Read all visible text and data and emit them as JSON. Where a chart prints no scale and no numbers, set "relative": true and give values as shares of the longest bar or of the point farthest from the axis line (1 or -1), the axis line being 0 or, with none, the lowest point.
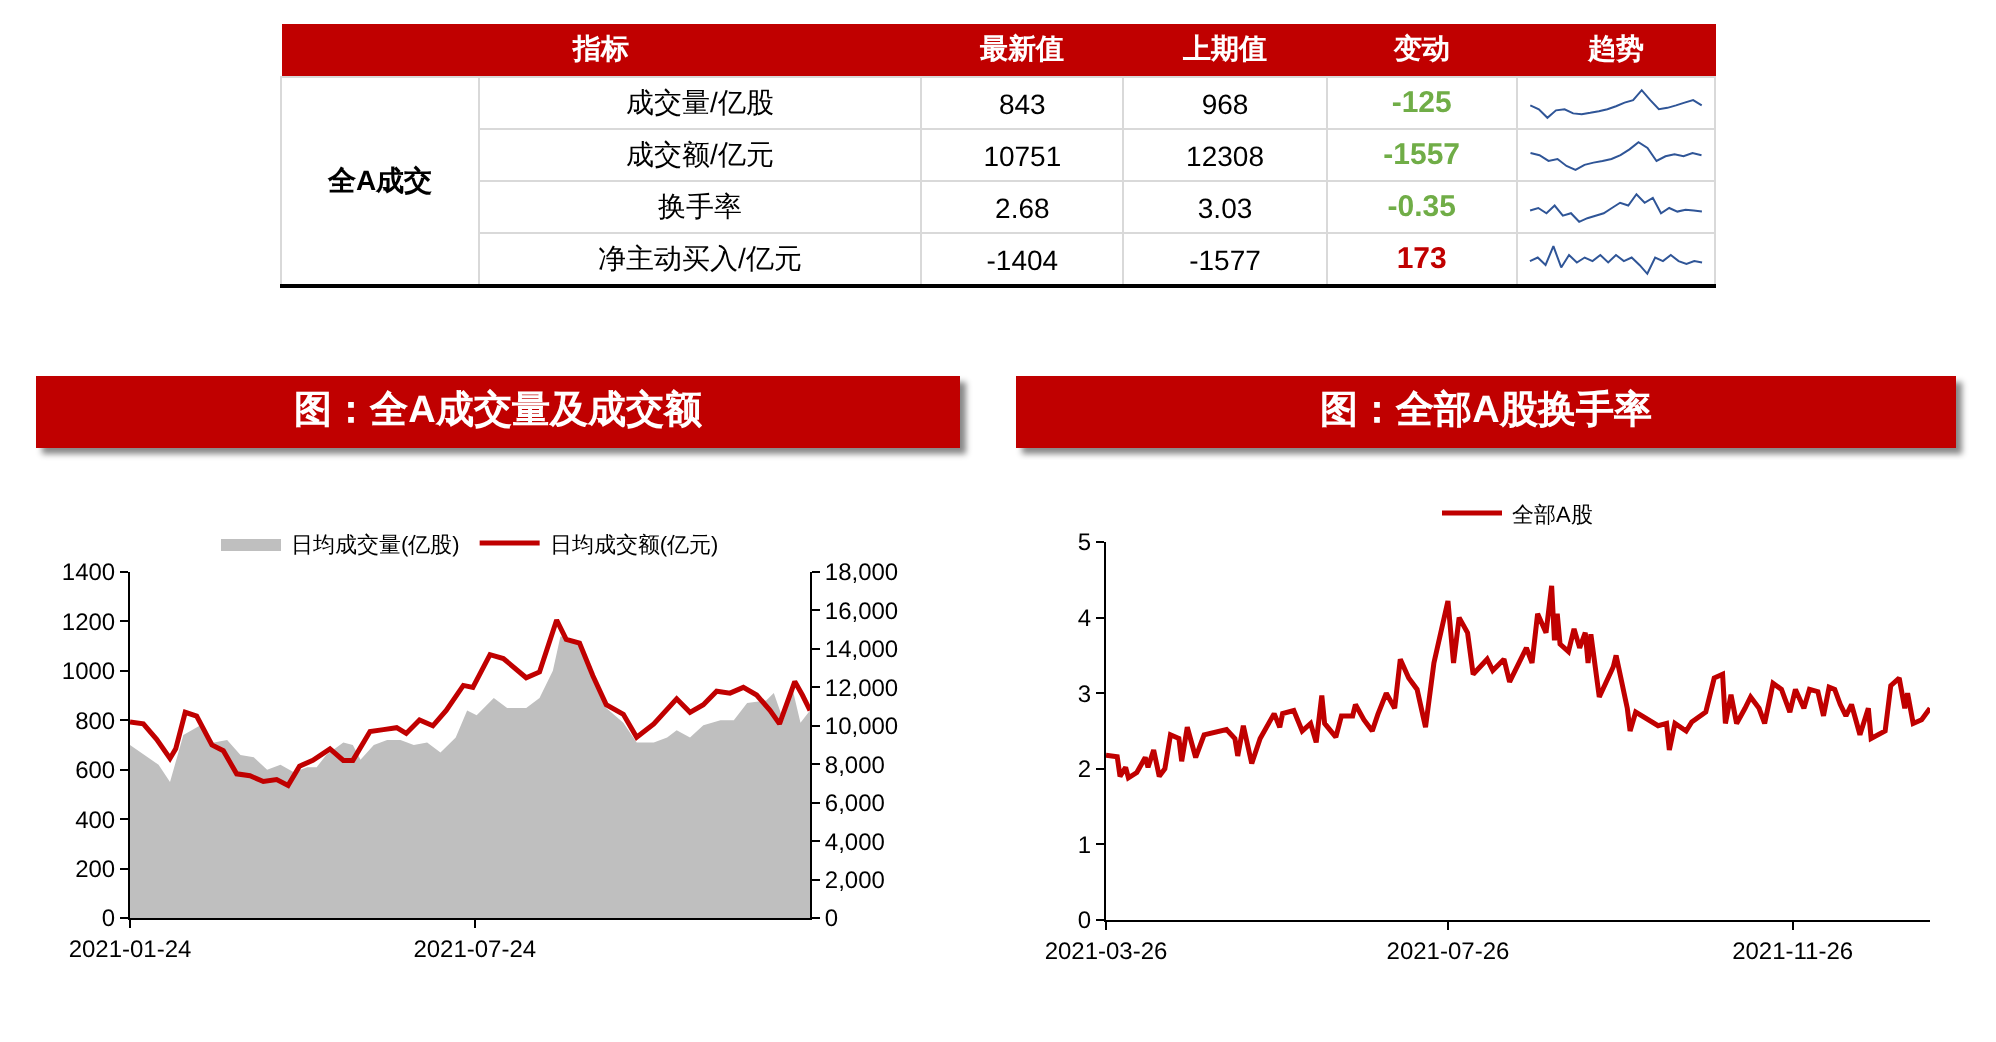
{
  "chart_data": [
    {
      "type": "other",
      "xlabel": "指标",
      "ylabel": "全A成交",
      "categories": [
        "成交量/亿股",
        "成交额/亿元",
        "换手率",
        "净主动买入/亿元"
      ],
      "series": [
        {
          "name": "最新值",
          "values": [
            843,
            10751,
            2.68,
            -1404
          ]
        },
        {
          "name": "上期值",
          "values": [
            968,
            12308,
            3.03,
            -1577
          ]
        },
        {
          "name": "变动",
          "values": [
            -125,
            -1557,
            -0.35,
            173
          ],
          "colors": [
            "#70ad47",
            "#70ad47",
            "#70ad47",
            "#c00000"
          ]
        }
      ],
      "data_labels": true,
      "annotations": [
        "趋势"
      ]
    },
    {
      "type": "line",
      "relative": true,
      "categories": [
        null,
        null,
        null,
        null,
        null,
        null,
        null,
        null,
        null,
        null,
        null,
        null,
        null,
        null,
        null,
        null,
        null,
        null,
        null,
        null,
        null
      ],
      "series": [
        {
          "color": "#2f5597",
          "values": [
            0.45,
            0.31,
            0,
            0.27,
            0.31,
            0.16,
            0.13,
            0.18,
            0.24,
            0.31,
            0.42,
            0.55,
            0.64,
            1,
            0.64,
            0.31,
            0.36,
            0.45,
            0.55,
            0.64,
            0.45
          ]
        }
      ]
    },
    {
      "type": "line",
      "relative": true,
      "categories": [
        null,
        null,
        null,
        null,
        null,
        null,
        null,
        null,
        null,
        null,
        null,
        null,
        null,
        null,
        null,
        null,
        null,
        null,
        null,
        null
      ],
      "series": [
        {
          "color": "#2f5597",
          "values": [
            0.61,
            0.53,
            0.32,
            0.39,
            0.14,
            0,
            0.18,
            0.26,
            0.32,
            0.39,
            0.53,
            0.74,
            1,
            0.79,
            0.32,
            0.49,
            0.56,
            0.49,
            0.61,
            0.53
          ]
        }
      ]
    },
    {
      "type": "line",
      "relative": true,
      "categories": [
        null,
        null,
        null,
        null,
        null,
        null,
        null,
        null,
        null,
        null,
        null,
        null,
        null,
        null,
        null,
        null,
        null,
        null,
        null,
        null,
        null,
        null
      ],
      "series": [
        {
          "color": "#2f5597",
          "values": [
            0.41,
            0.5,
            0.31,
            0.59,
            0.22,
            0.31,
            0,
            0.13,
            0.22,
            0.31,
            0.5,
            0.69,
            0.59,
            1,
            0.69,
            0.87,
            0.31,
            0.5,
            0.37,
            0.44,
            0.41,
            0.37
          ]
        }
      ]
    },
    {
      "type": "line",
      "relative": true,
      "categories": [
        null,
        null,
        null,
        null,
        null,
        null,
        null,
        null,
        null,
        null,
        null,
        null,
        null,
        null,
        null,
        null,
        null,
        null,
        null,
        null,
        null,
        null,
        null
      ],
      "series": [
        {
          "color": "#2f5597",
          "values": [
            0.46,
            0.59,
            0.32,
            1,
            0.23,
            0.68,
            0.41,
            0.59,
            0.46,
            0.68,
            0.41,
            0.68,
            0.46,
            0.59,
            0.32,
            0,
            0.59,
            0.46,
            0.68,
            0.46,
            0.36,
            0.46,
            0.41
          ]
        }
      ]
    },
    {
      "type": "area",
      "title": "图：全A成交量及成交额",
      "legend": "top",
      "xlim": [
        "2021-01-24",
        "2022-01-16"
      ],
      "xticks": [
        "2021-01-24",
        "2021-07-24"
      ],
      "ylim": [
        0,
        1400
      ],
      "yticks": [
        0,
        200,
        400,
        600,
        800,
        1000,
        1200,
        1400
      ],
      "y2lim": [
        0,
        18000
      ],
      "y2ticks": [
        0,
        {
          "value": 2000,
          "label": "2,000"
        },
        {
          "value": 4000,
          "label": "4,000"
        },
        {
          "value": 6000,
          "label": "6,000"
        },
        {
          "value": 8000,
          "label": "8,000"
        },
        {
          "value": 10000,
          "label": "10,000"
        },
        {
          "value": 12000,
          "label": "12,000"
        },
        {
          "value": 14000,
          "label": "14,000"
        },
        {
          "value": 16000,
          "label": "16,000"
        },
        {
          "value": 18000,
          "label": "18,000"
        }
      ],
      "series": [
        {
          "name": "日均成交量(亿股)",
          "type": "area",
          "color": "#bfbfbf",
          "x": [
            "2021-01-24",
            "2021-02-08",
            "2021-02-14",
            "2021-02-21",
            "2021-03-02",
            "2021-03-09",
            "2021-03-16",
            "2021-03-23",
            "2021-03-30",
            "2021-04-06",
            "2021-04-13",
            "2021-04-20",
            "2021-04-27",
            "2021-05-02",
            "2021-05-07",
            "2021-05-16",
            "2021-05-21",
            "2021-05-25",
            "2021-06-01",
            "2021-06-08",
            "2021-06-15",
            "2021-06-22",
            "2021-06-29",
            "2021-07-06",
            "2021-07-14",
            "2021-07-20",
            "2021-07-25",
            "2021-08-03",
            "2021-08-10",
            "2021-08-20",
            "2021-08-27",
            "2021-09-03",
            "2021-09-07",
            "2021-09-12",
            "2021-09-17",
            "2021-09-24",
            "2021-10-01",
            "2021-10-10",
            "2021-10-17",
            "2021-10-26",
            "2021-11-02",
            "2021-11-07",
            "2021-11-14",
            "2021-11-21",
            "2021-11-30",
            "2021-12-07",
            "2021-12-14",
            "2021-12-24",
            "2021-12-28",
            "2022-01-02",
            "2022-01-07",
            "2022-01-11",
            "2022-01-16"
          ],
          "values": [
            700,
            620,
            550,
            740,
            780,
            710,
            720,
            660,
            650,
            600,
            620,
            590,
            610,
            610,
            660,
            710,
            700,
            640,
            700,
            720,
            720,
            700,
            710,
            670,
            730,
            840,
            820,
            890,
            850,
            850,
            890,
            1000,
            1140,
            1130,
            1100,
            970,
            850,
            790,
            710,
            710,
            730,
            760,
            730,
            780,
            800,
            800,
            870,
            880,
            910,
            800,
            920,
            790,
            840
          ]
        },
        {
          "name": "日均成交额(亿元)",
          "type": "line",
          "axis": "y2",
          "color": "#c00000",
          "x": [
            "2021-01-24",
            "2021-01-31",
            "2021-02-07",
            "2021-02-14",
            "2021-02-17",
            "2021-02-22",
            "2021-02-28",
            "2021-03-08",
            "2021-03-14",
            "2021-03-21",
            "2021-03-28",
            "2021-04-04",
            "2021-04-11",
            "2021-04-17",
            "2021-04-23",
            "2021-04-30",
            "2021-05-09",
            "2021-05-16",
            "2021-05-21",
            "2021-05-30",
            "2021-06-06",
            "2021-06-13",
            "2021-06-18",
            "2021-06-25",
            "2021-07-02",
            "2021-07-09",
            "2021-07-18",
            "2021-07-23",
            "2021-08-01",
            "2021-08-08",
            "2021-08-20",
            "2021-08-27",
            "2021-09-05",
            "2021-09-10",
            "2021-09-17",
            "2021-09-24",
            "2021-10-01",
            "2021-10-10",
            "2021-10-17",
            "2021-10-26",
            "2021-11-07",
            "2021-11-14",
            "2021-11-21",
            "2021-11-28",
            "2021-12-05",
            "2021-12-12",
            "2021-12-19",
            "2021-12-26",
            "2021-12-31",
            "2022-01-08",
            "2022-01-12",
            "2022-01-16"
          ],
          "values": [
            10200,
            10100,
            9300,
            8300,
            8800,
            10700,
            10500,
            9000,
            8700,
            7500,
            7400,
            7100,
            7200,
            6900,
            7900,
            8200,
            8800,
            8200,
            8200,
            9700,
            9800,
            9900,
            9600,
            10300,
            10000,
            10800,
            12100,
            12000,
            13700,
            13500,
            12500,
            12800,
            15500,
            14500,
            14300,
            12600,
            11100,
            10600,
            9400,
            10100,
            11400,
            10700,
            11100,
            11800,
            11700,
            12000,
            11600,
            10800,
            10100,
            12300,
            11600,
            10800
          ]
        }
      ]
    },
    {
      "type": "line",
      "title": "图：全部A股换手率",
      "legend": "top",
      "xlim": [
        "2021-03-26",
        "2022-01-14"
      ],
      "xticks": [
        "2021-03-26",
        "2021-07-26",
        "2021-11-26"
      ],
      "ylim": [
        0,
        5
      ],
      "yticks": [
        0,
        1,
        2,
        3,
        4,
        5
      ],
      "series": [
        {
          "name": "全部A股",
          "color": "#c00000",
          "x": [
            "2021-03-26",
            "2021-03-30",
            "2021-03-31",
            "2021-04-02",
            "2021-04-03",
            "2021-04-06",
            "2021-04-09",
            "2021-04-10",
            "2021-04-12",
            "2021-04-14",
            "2021-04-16",
            "2021-04-18",
            "2021-04-21",
            "2021-04-22",
            "2021-04-24",
            "2021-04-27",
            "2021-04-30",
            "2021-05-08",
            "2021-05-11",
            "2021-05-12",
            "2021-05-14",
            "2021-05-17",
            "2021-05-20",
            "2021-05-25",
            "2021-05-27",
            "2021-05-28",
            "2021-06-01",
            "2021-06-04",
            "2021-06-07",
            "2021-06-09",
            "2021-06-11",
            "2021-06-12",
            "2021-06-16",
            "2021-06-18",
            "2021-06-22",
            "2021-06-23",
            "2021-06-26",
            "2021-06-29",
            "2021-07-01",
            "2021-07-04",
            "2021-07-07",
            "2021-07-09",
            "2021-07-12",
            "2021-07-15",
            "2021-07-18",
            "2021-07-21",
            "2021-07-26",
            "2021-07-28",
            "2021-07-30",
            "2021-08-02",
            "2021-08-04",
            "2021-08-09",
            "2021-08-11",
            "2021-08-15",
            "2021-08-17",
            "2021-08-23",
            "2021-08-25",
            "2021-08-27",
            "2021-08-30",
            "2021-09-01",
            "2021-09-02",
            "2021-09-03",
            "2021-09-04",
            "2021-09-07",
            "2021-09-09",
            "2021-09-11",
            "2021-09-13",
            "2021-09-14",
            "2021-09-15",
            "2021-09-18",
            "2021-09-23",
            "2021-09-24",
            "2021-09-28",
            "2021-09-29",
            "2021-10-01",
            "2021-10-09",
            "2021-10-12",
            "2021-10-13",
            "2021-10-15",
            "2021-10-19",
            "2021-10-21",
            "2021-10-26",
            "2021-10-29",
            "2021-11-01",
            "2021-11-02",
            "2021-11-04",
            "2021-11-06",
            "2021-11-09",
            "2021-11-11",
            "2021-11-14",
            "2021-11-16",
            "2021-11-19",
            "2021-11-22",
            "2021-11-25",
            "2021-11-27",
            "2021-11-30",
            "2021-12-02",
            "2021-12-05",
            "2021-12-07",
            "2021-12-09",
            "2021-12-11",
            "2021-12-13",
            "2021-12-15",
            "2021-12-17",
            "2021-12-20",
            "2021-12-23",
            "2021-12-24",
            "2021-12-29",
            "2021-12-31",
            "2022-01-03",
            "2022-01-05",
            "2022-01-06",
            "2022-01-08",
            "2022-01-11",
            "2022-01-14"
          ],
          "values": [
            2.18,
            2.16,
            1.9,
            2.02,
            1.88,
            1.95,
            2.15,
            2.02,
            2.25,
            1.9,
            2.0,
            2.45,
            2.4,
            2.1,
            2.55,
            2.15,
            2.45,
            2.52,
            2.4,
            2.17,
            2.57,
            2.07,
            2.4,
            2.73,
            2.55,
            2.73,
            2.77,
            2.5,
            2.6,
            2.35,
            2.97,
            2.6,
            2.42,
            2.7,
            2.7,
            2.85,
            2.65,
            2.5,
            2.72,
            3.0,
            2.8,
            3.45,
            3.2,
            3.05,
            2.55,
            3.4,
            4.22,
            3.4,
            4.0,
            3.8,
            3.25,
            3.45,
            3.3,
            3.45,
            3.15,
            3.6,
            3.4,
            4.05,
            3.8,
            4.42,
            3.7,
            4.05,
            3.65,
            3.55,
            3.85,
            3.6,
            3.8,
            3.4,
            3.78,
            2.95,
            3.35,
            3.5,
            2.8,
            2.5,
            2.75,
            2.57,
            2.6,
            2.25,
            2.6,
            2.5,
            2.62,
            2.75,
            3.2,
            3.25,
            2.6,
            2.98,
            2.6,
            2.8,
            2.95,
            2.8,
            2.6,
            3.13,
            3.05,
            2.75,
            3.05,
            2.8,
            3.05,
            3.02,
            2.7,
            3.08,
            3.05,
            2.85,
            2.7,
            2.85,
            2.45,
            2.8,
            2.4,
            2.5,
            3.1,
            3.2,
            2.8,
            3.0,
            2.6,
            2.65,
            2.8
          ]
        }
      ]
    }
  ]
}
